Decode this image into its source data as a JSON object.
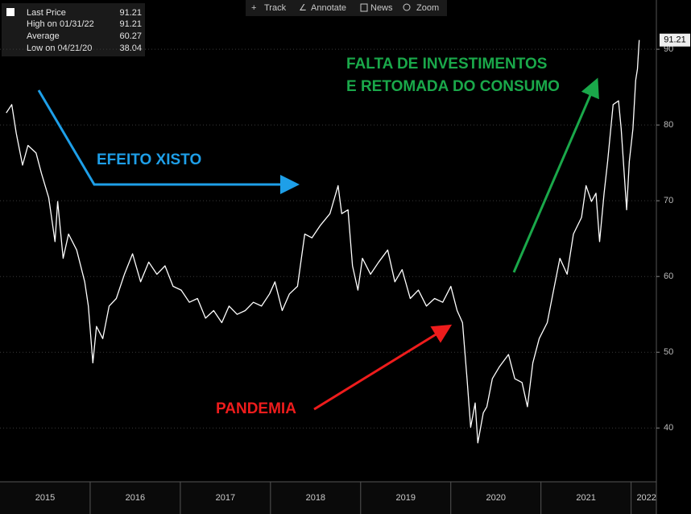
{
  "chart_data": {
    "type": "line",
    "toolbar": [
      "Track",
      "Annotate",
      "News",
      "Zoom"
    ],
    "legend": [
      {
        "label": "Last Price",
        "value": 91.21
      },
      {
        "label": "High on 01/31/22",
        "value": 91.21
      },
      {
        "label": "Average",
        "value": 60.27
      },
      {
        "label": "Low on 04/21/20",
        "value": 38.04
      }
    ],
    "annotations": [
      {
        "text": "EFEITO XISTO",
        "color": "#1e9fe8"
      },
      {
        "text": "PANDEMIA",
        "color": "#ee1c1c"
      },
      {
        "text": "FALTA DE INVESTIMENTOS",
        "color": "#1aa84a"
      },
      {
        "text": "E RETOMADA DO CONSUMO",
        "color": "#1aa84a"
      }
    ],
    "x": [
      2015.07,
      2015.13,
      2015.18,
      2015.25,
      2015.31,
      2015.4,
      2015.46,
      2015.54,
      2015.61,
      2015.64,
      2015.7,
      2015.76,
      2015.85,
      2015.94,
      2015.98,
      2016.03,
      2016.07,
      2016.14,
      2016.21,
      2016.29,
      2016.38,
      2016.47,
      2016.56,
      2016.65,
      2016.74,
      2016.83,
      2016.92,
      2017.01,
      2017.1,
      2017.19,
      2017.28,
      2017.37,
      2017.46,
      2017.54,
      2017.63,
      2017.72,
      2017.81,
      2017.9,
      2017.99,
      2018.05,
      2018.13,
      2018.21,
      2018.3,
      2018.38,
      2018.46,
      2018.55,
      2018.66,
      2018.75,
      2018.79,
      2018.86,
      2018.91,
      2018.97,
      2019.02,
      2019.11,
      2019.2,
      2019.3,
      2019.38,
      2019.46,
      2019.55,
      2019.64,
      2019.73,
      2019.82,
      2019.91,
      2020.0,
      2020.07,
      2020.13,
      2020.18,
      2020.22,
      2020.27,
      2020.3,
      2020.36,
      2020.4,
      2020.46,
      2020.54,
      2020.64,
      2020.71,
      2020.79,
      2020.85,
      2020.91,
      2020.98,
      2021.07,
      2021.14,
      2021.21,
      2021.29,
      2021.36,
      2021.45,
      2021.5,
      2021.56,
      2021.61,
      2021.65,
      2021.7,
      2021.74,
      2021.8,
      2021.86,
      2021.89,
      2021.95,
      2021.98,
      2022.02,
      2022.05,
      2022.07,
      2022.09
    ],
    "series": [
      {
        "name": "Last Price",
        "color": "#ffffff",
        "values": [
          81.6,
          82.7,
          78.9,
          74.7,
          77.3,
          76.3,
          73.6,
          70.4,
          64.6,
          69.9,
          62.4,
          65.6,
          63.5,
          59.3,
          56.1,
          48.6,
          53.4,
          51.8,
          56.1,
          57.1,
          60.3,
          63.0,
          59.3,
          61.9,
          60.3,
          61.4,
          58.7,
          58.2,
          56.6,
          57.1,
          54.5,
          55.5,
          53.9,
          56.1,
          55.0,
          55.5,
          56.6,
          56.1,
          57.7,
          59.3,
          55.5,
          57.7,
          58.7,
          65.6,
          65.1,
          66.7,
          68.3,
          72.0,
          68.3,
          68.8,
          61.4,
          58.2,
          62.4,
          60.3,
          61.9,
          63.5,
          59.3,
          60.9,
          57.1,
          58.2,
          56.1,
          57.1,
          56.6,
          58.7,
          55.5,
          53.9,
          46.5,
          40.1,
          43.3,
          38.04,
          42.0,
          42.8,
          46.5,
          48.1,
          49.7,
          46.5,
          46.0,
          42.8,
          48.6,
          51.8,
          53.9,
          58.2,
          62.4,
          60.3,
          65.6,
          67.8,
          72.0,
          69.9,
          71.0,
          64.6,
          71.0,
          75.2,
          82.7,
          83.2,
          79.5,
          68.8,
          75.2,
          79.5,
          85.9,
          87.4,
          91.21
        ]
      }
    ],
    "xlim": [
      2015.0,
      2022.28
    ],
    "ylim": [
      32.9,
      96.5
    ],
    "yticks": [
      40,
      50,
      60,
      70,
      80,
      90
    ],
    "xticks": [
      {
        "value": 2015.5,
        "label": "2015"
      },
      {
        "value": 2016.5,
        "label": "2016"
      },
      {
        "value": 2017.5,
        "label": "2017"
      },
      {
        "value": 2018.5,
        "label": "2018"
      },
      {
        "value": 2019.5,
        "label": "2019"
      },
      {
        "value": 2020.5,
        "label": "2020"
      },
      {
        "value": 2021.5,
        "label": "2021"
      },
      {
        "value": 2022.17,
        "label": "2022"
      }
    ],
    "grid": true
  }
}
